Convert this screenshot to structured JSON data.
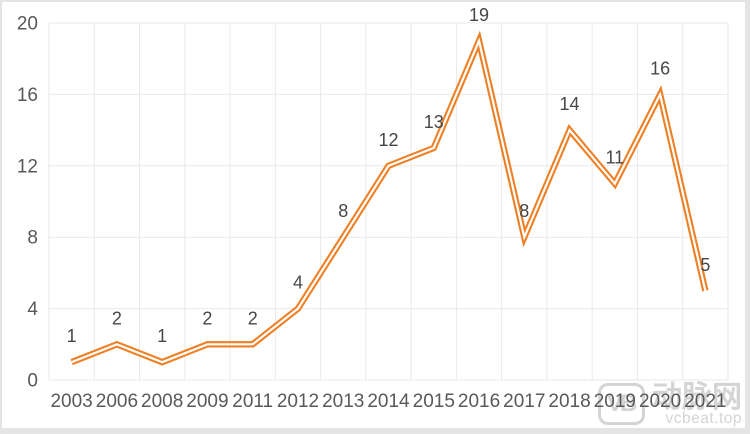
{
  "chart_data": {
    "type": "line",
    "title": "",
    "xlabel": "",
    "ylabel": "",
    "categories": [
      "2003",
      "2006",
      "2008",
      "2009",
      "2011",
      "2012",
      "2013",
      "2014",
      "2015",
      "2016",
      "2017",
      "2018",
      "2019",
      "2020",
      "2021"
    ],
    "values": [
      1,
      2,
      1,
      2,
      2,
      4,
      8,
      12,
      13,
      19,
      8,
      14,
      11,
      16,
      5
    ],
    "data_labels": [
      "1",
      "2",
      "1",
      "2",
      "2",
      "4",
      "8",
      "12",
      "13",
      "19",
      "8",
      "14",
      "11",
      "16",
      "5"
    ],
    "ylim": [
      0,
      20
    ],
    "yticks": [
      0,
      4,
      8,
      12,
      16,
      20
    ],
    "grid": true,
    "legend": "none",
    "line_color": "#ee7f24",
    "line_core_color": "#ffffff",
    "grid_color": "#e9e9e9",
    "axis_label_color": "#595959",
    "data_label_color": "#474747"
  },
  "watermark": {
    "logo_text": "VB",
    "brand": "动脉网",
    "site": "vcbeat.top",
    "color": "#d4d4d4"
  }
}
